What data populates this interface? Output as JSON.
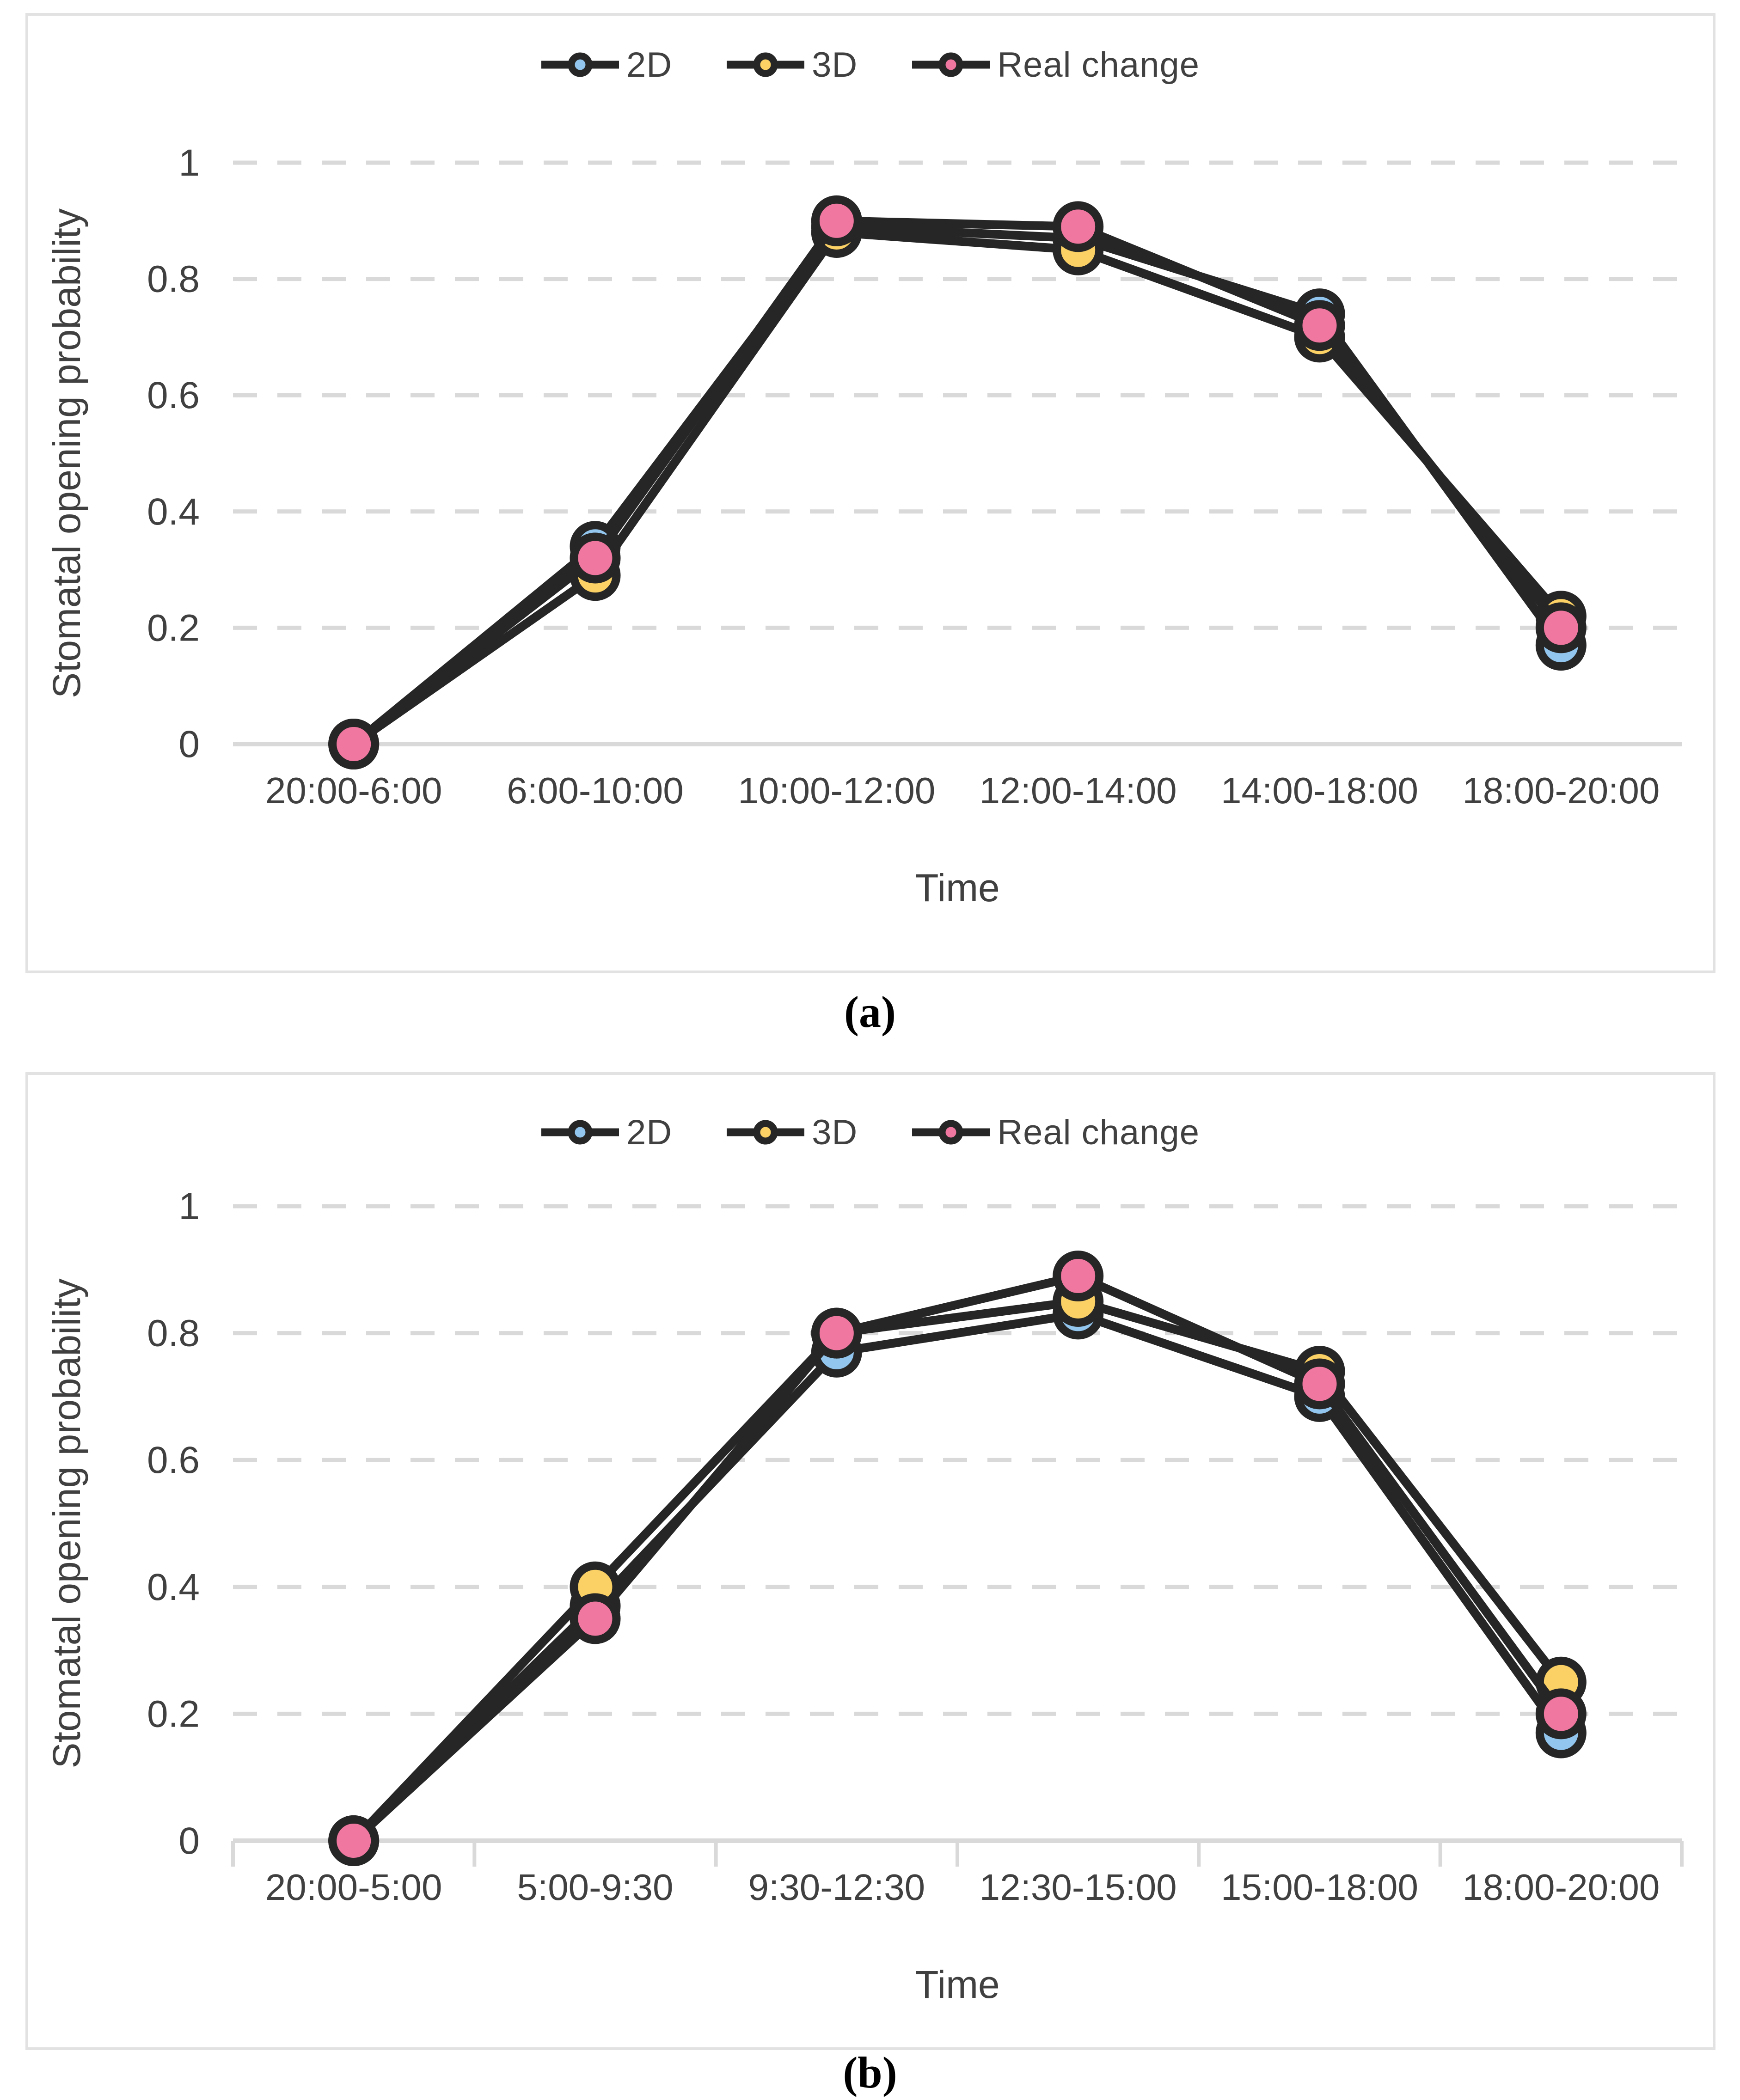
{
  "figure": {
    "caption_a": "(a)",
    "caption_b": "(b)"
  },
  "colors": {
    "line_and_marker_ring": "#262626",
    "gridline": "#d9d9d9",
    "axis_line": "#d9d9d9",
    "axis_text": "#404040",
    "legend_text": "#404040",
    "panel_border": "#e2e2e2",
    "series_2d": "#93c6ee",
    "series_3d": "#fbd166",
    "series_real_change": "#f0779f"
  },
  "chart_data": [
    {
      "panel": "a",
      "type": "line",
      "xlabel": "Time",
      "ylabel": "Stomatal opening probability",
      "ylim": [
        0,
        1
      ],
      "yticks": [
        0,
        0.2,
        0.4,
        0.6,
        0.8,
        1
      ],
      "grid": "horizontal-dashed",
      "legend_position": "top-center",
      "x_axis_tick_marks": false,
      "categories": [
        "20:00-6:00",
        "6:00-10:00",
        "10:00-12:00",
        "12:00-14:00",
        "14:00-18:00",
        "18:00-20:00"
      ],
      "series": [
        {
          "name": "2D",
          "color": "#93c6ee",
          "values": [
            0,
            0.34,
            0.89,
            0.87,
            0.74,
            0.17
          ]
        },
        {
          "name": "3D",
          "color": "#fbd166",
          "values": [
            0,
            0.29,
            0.88,
            0.85,
            0.7,
            0.22
          ]
        },
        {
          "name": "Real change",
          "color": "#f0779f",
          "values": [
            0,
            0.32,
            0.9,
            0.89,
            0.72,
            0.2
          ]
        }
      ]
    },
    {
      "panel": "b",
      "type": "line",
      "xlabel": "Time",
      "ylabel": "Stomatal opening probability",
      "ylim": [
        0,
        1
      ],
      "yticks": [
        0,
        0.2,
        0.4,
        0.6,
        0.8,
        1
      ],
      "grid": "horizontal-dashed",
      "legend_position": "top-center",
      "x_axis_tick_marks": true,
      "categories": [
        "20:00-5:00",
        "5:00-9:30",
        "9:30-12:30",
        "12:30-15:00",
        "15:00-18:00",
        "18:00-20:00"
      ],
      "series": [
        {
          "name": "2D",
          "color": "#93c6ee",
          "values": [
            0,
            0.37,
            0.77,
            0.83,
            0.7,
            0.17
          ]
        },
        {
          "name": "3D",
          "color": "#fbd166",
          "values": [
            0,
            0.4,
            0.8,
            0.85,
            0.74,
            0.25
          ]
        },
        {
          "name": "Real change",
          "color": "#f0779f",
          "values": [
            0,
            0.35,
            0.8,
            0.89,
            0.72,
            0.2
          ]
        }
      ]
    }
  ]
}
